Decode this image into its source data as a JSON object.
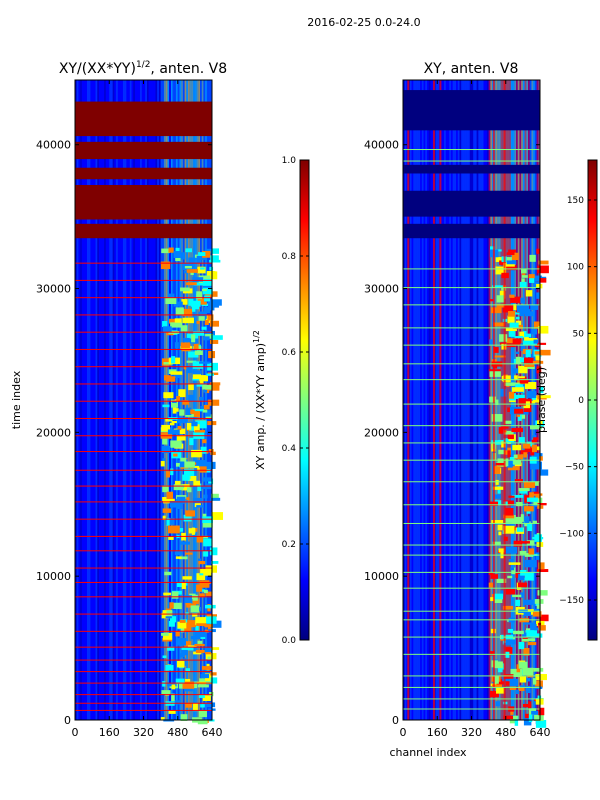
{
  "suptitle": "2016-02-25 0.0-24.0",
  "colors": {
    "jet": [
      "#00007f",
      "#0000ff",
      "#007fff",
      "#00ffff",
      "#7fff7f",
      "#ffff00",
      "#ff7f00",
      "#ff0000",
      "#7f0000"
    ],
    "frame": "#000000",
    "background": "#ffffff"
  },
  "chart_data": [
    {
      "type": "heatmap",
      "title_main": "XY/(XX*YY)",
      "title_sup": "1/2",
      "title_tail": ", anten. V8",
      "xlabel": "",
      "ylabel": "time index",
      "xlim": [
        0,
        640
      ],
      "ylim": [
        0,
        44500
      ],
      "xticks": [
        0,
        160,
        320,
        480,
        640
      ],
      "yticks": [
        0,
        10000,
        20000,
        30000,
        40000
      ],
      "colorbar": {
        "label_main": "XY amp. / (XX*YY amp)",
        "label_sup": "1/2",
        "vmin": 0.0,
        "vmax": 1.0,
        "ticks": [
          0.0,
          0.2,
          0.4,
          0.6,
          0.8,
          1.0
        ],
        "tick_labels": [
          "0.0",
          "0.2",
          "0.4",
          "0.6",
          "0.8",
          "1.0"
        ]
      },
      "saturated_time_bands": [
        [
          33500,
          34500
        ],
        [
          34800,
          37200
        ],
        [
          37600,
          38400
        ],
        [
          39000,
          40200
        ],
        [
          40600,
          43000
        ]
      ],
      "flagged_time_rows": [
        700,
        1200,
        1800,
        2600,
        3400,
        4200,
        5100,
        6200,
        7400,
        8600,
        9600,
        10600,
        11800,
        12800,
        14000,
        15200,
        16300,
        17400,
        18700,
        19800,
        21000,
        22200,
        23400,
        24600,
        25800,
        27000,
        28200,
        29400,
        30600,
        31800
      ],
      "active_channel_range": [
        400,
        640
      ]
    },
    {
      "type": "heatmap",
      "title_main": "XY, anten. V8",
      "xlabel": "channel index",
      "ylabel": "",
      "xlim": [
        0,
        640
      ],
      "ylim": [
        0,
        44500
      ],
      "xticks": [
        0,
        160,
        320,
        480,
        640
      ],
      "yticks": [
        0,
        10000,
        20000,
        30000,
        40000
      ],
      "colorbar": {
        "label_main": "phase (deg)",
        "vmin": -180,
        "vmax": 180,
        "ticks": [
          -150,
          -100,
          -50,
          0,
          50,
          100,
          150
        ],
        "tick_labels": [
          "−150",
          "−100",
          "−50",
          "0",
          "50",
          "100",
          "150"
        ]
      },
      "saturated_time_bands": [
        [
          33500,
          34500
        ],
        [
          35000,
          36800
        ],
        [
          38000,
          38600
        ],
        [
          41000,
          43800
        ]
      ],
      "flagged_time_rows": [
        800,
        1500,
        2300,
        3100,
        4600,
        5800,
        7000,
        7600,
        9200,
        10300,
        11500,
        12200,
        13700,
        15000,
        16600,
        18100,
        19300,
        20500,
        22000,
        23700,
        24800,
        26100,
        27300,
        28900,
        30100,
        31400,
        38900,
        39700
      ],
      "bright_channel_columns": [
        20,
        140,
        170,
        420,
        470
      ],
      "active_channel_range": [
        400,
        640
      ]
    }
  ]
}
